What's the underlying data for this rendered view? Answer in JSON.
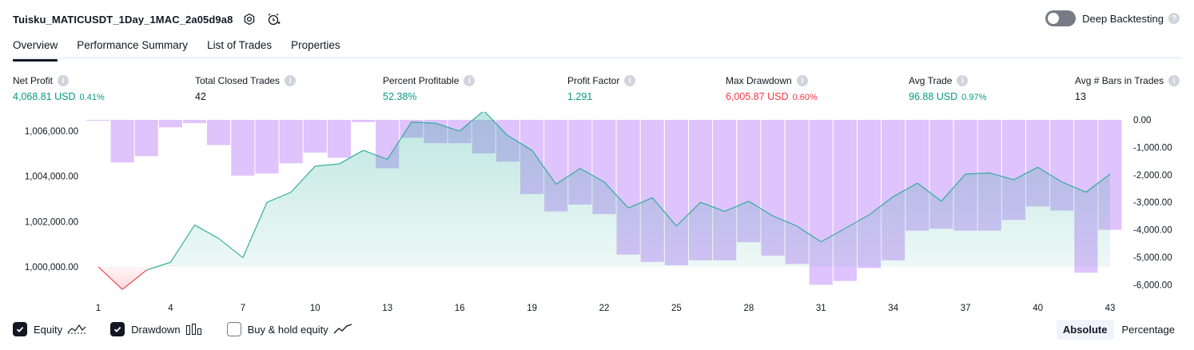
{
  "header": {
    "title": "Tuisku_MATICUSDT_1Day_1MAC_2a05d9a8",
    "deep_backtesting_label": "Deep Backtesting",
    "deep_backtesting_enabled": false
  },
  "tabs": [
    {
      "label": "Overview",
      "active": true
    },
    {
      "label": "Performance Summary",
      "active": false
    },
    {
      "label": "List of Trades",
      "active": false
    },
    {
      "label": "Properties",
      "active": false
    }
  ],
  "metrics": {
    "net_profit": {
      "label": "Net Profit",
      "value": "4,068.81 USD",
      "pct": "0.41%"
    },
    "total_closed_trades": {
      "label": "Total Closed Trades",
      "value": "42"
    },
    "percent_profitable": {
      "label": "Percent Profitable",
      "value": "52.38%"
    },
    "profit_factor": {
      "label": "Profit Factor",
      "value": "1.291"
    },
    "max_drawdown": {
      "label": "Max Drawdown",
      "value": "6,005.87 USD",
      "pct": "0.60%"
    },
    "avg_trade": {
      "label": "Avg Trade",
      "value": "96.88 USD",
      "pct": "0.97%"
    },
    "avg_bars": {
      "label": "Avg # Bars in Trades",
      "value": "13"
    }
  },
  "legend": {
    "equity": {
      "label": "Equity",
      "checked": true
    },
    "drawdown": {
      "label": "Drawdown",
      "checked": true
    },
    "buy_hold": {
      "label": "Buy & hold equity",
      "checked": false
    }
  },
  "modes": {
    "absolute": "Absolute",
    "percentage": "Percentage",
    "selected": "Absolute"
  },
  "colors": {
    "equity_line": "#22ab94",
    "equity_negative": "#f23645",
    "drawdown_bar": "#d9b8fb",
    "accent": "#131722"
  },
  "chart_data": {
    "type": "line",
    "x_ticks": [
      "1",
      "4",
      "7",
      "10",
      "13",
      "16",
      "19",
      "22",
      "25",
      "28",
      "31",
      "34",
      "37",
      "40",
      "43"
    ],
    "left_ticks": [
      "1,006,000.00",
      "1,004,000.00",
      "1,002,000.00",
      "1,000,000.00"
    ],
    "left_tick_values": [
      1006000,
      1004000,
      1002000,
      1000000
    ],
    "right_ticks": [
      "0.00",
      "-1,000.00",
      "-2,000.00",
      "-3,000.00",
      "-4,000.00",
      "-5,000.00",
      "-6,000.00"
    ],
    "right_tick_values": [
      0,
      -1000,
      -2000,
      -3000,
      -4000,
      -5000,
      -6000
    ],
    "left_ylim": [
      998900,
      1006850
    ],
    "right_ylim": [
      -6250,
      0
    ],
    "xlim": [
      1,
      43
    ],
    "series": [
      {
        "name": "Equity",
        "axis": "left",
        "x": [
          1,
          2,
          3,
          4,
          5,
          6,
          7,
          8,
          9,
          10,
          11,
          12,
          13,
          14,
          15,
          16,
          17,
          18,
          19,
          20,
          21,
          22,
          23,
          24,
          25,
          26,
          27,
          28,
          29,
          30,
          31,
          32,
          33,
          34,
          35,
          36,
          37,
          38,
          39,
          40,
          41,
          42,
          43
        ],
        "values": [
          1000000,
          999000,
          999850,
          1000200,
          1001850,
          1001250,
          1000400,
          1002850,
          1003300,
          1004450,
          1004550,
          1005150,
          1004750,
          1006400,
          1006350,
          1006000,
          1006900,
          1005800,
          1005150,
          1003650,
          1004350,
          1003750,
          1002600,
          1003050,
          1001800,
          1002850,
          1002450,
          1002900,
          1002250,
          1001800,
          1001100,
          1001700,
          1002300,
          1003100,
          1003700,
          1002900,
          1004100,
          1004150,
          1003850,
          1004400,
          1003750,
          1003300,
          1004100
        ]
      },
      {
        "name": "Drawdown",
        "axis": "right",
        "type": "bar",
        "x": [
          1,
          2,
          3,
          4,
          5,
          6,
          7,
          8,
          9,
          10,
          11,
          12,
          13,
          14,
          15,
          16,
          17,
          18,
          19,
          20,
          21,
          22,
          23,
          24,
          25,
          26,
          27,
          28,
          29,
          30,
          31,
          32,
          33,
          34,
          35,
          36,
          37,
          38,
          39,
          40,
          41,
          42,
          43
        ],
        "values": [
          -20,
          -1550,
          -1320,
          -270,
          -120,
          -920,
          -2030,
          -1950,
          -1580,
          -1190,
          -1380,
          -80,
          -1760,
          -650,
          -850,
          -850,
          -1220,
          -1520,
          -2700,
          -3330,
          -3080,
          -3430,
          -4900,
          -5170,
          -5290,
          -5110,
          -5110,
          -4450,
          -4940,
          -5240,
          -6000,
          -5860,
          -5390,
          -5110,
          -4030,
          -3960,
          -4030,
          -4030,
          -3640,
          -3150,
          -3300,
          -5560,
          -4000
        ]
      }
    ],
    "grid": true
  }
}
